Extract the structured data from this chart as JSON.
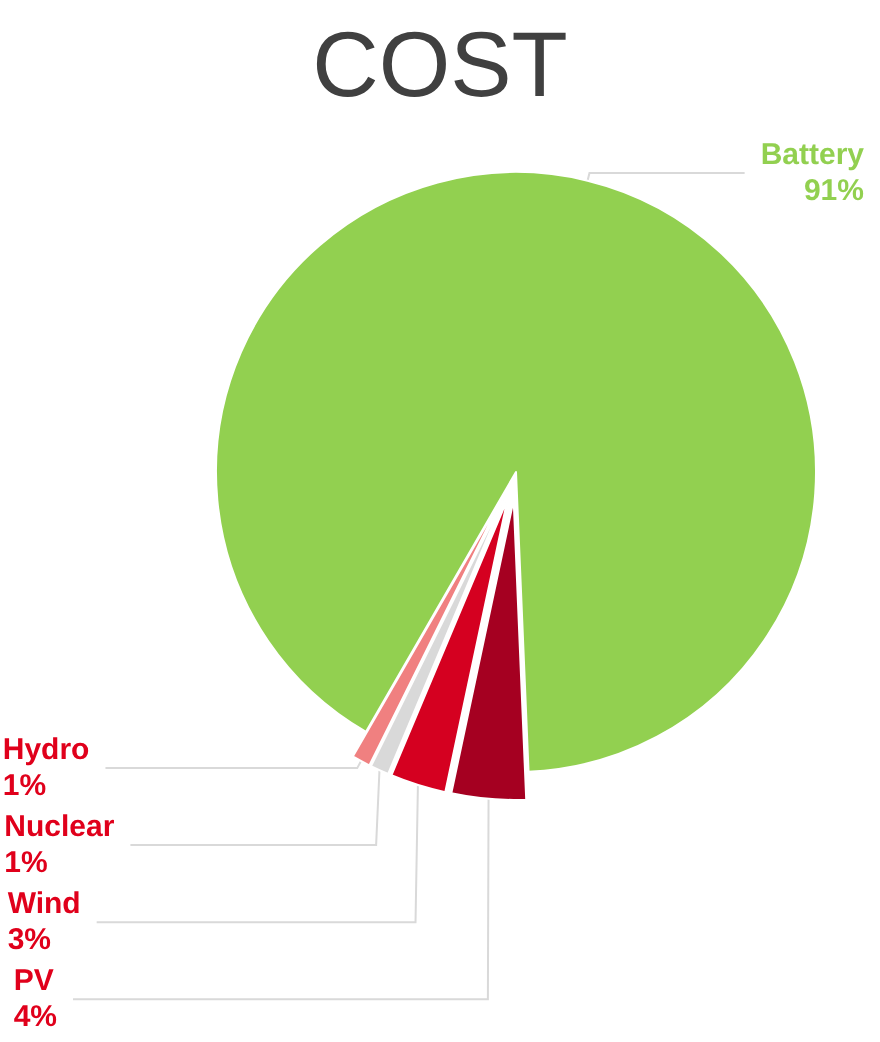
{
  "chart_data": {
    "type": "pie",
    "title": "COST",
    "categories": [
      "Battery",
      "PV",
      "Wind",
      "Nuclear",
      "Hydro"
    ],
    "values": [
      91,
      4,
      3,
      1,
      1
    ],
    "colors": [
      "#92d050",
      "#a50021",
      "#d50020",
      "#d9d9d9",
      "#f08080"
    ],
    "value_labels": [
      "91%",
      "4%",
      "3%",
      "1%",
      "1%"
    ]
  }
}
